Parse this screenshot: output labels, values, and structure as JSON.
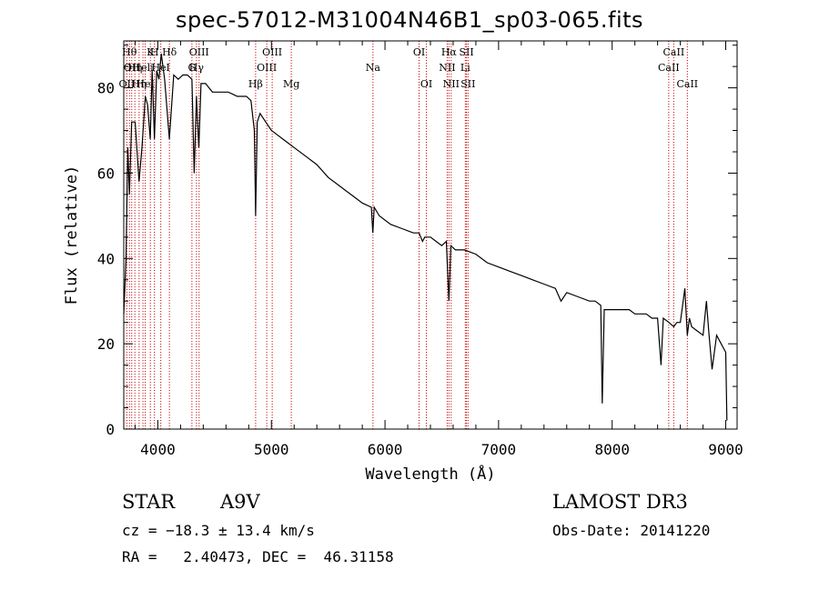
{
  "chart_data": {
    "type": "line",
    "title": "spec-57012-M31004N46B1_sp03-065.fits",
    "xlabel": "Wavelength (Å)",
    "ylabel": "Flux (relative)",
    "xlim": [
      3700,
      9100
    ],
    "ylim": [
      0,
      91
    ],
    "xticks": [
      4000,
      5000,
      6000,
      7000,
      8000,
      9000
    ],
    "yticks": [
      0,
      20,
      40,
      60,
      80
    ],
    "series": [
      {
        "name": "spectrum",
        "x": [
          3700,
          3720,
          3735,
          3750,
          3770,
          3800,
          3835,
          3860,
          3890,
          3910,
          3933,
          3950,
          3970,
          3990,
          4010,
          4030,
          4060,
          4101,
          4140,
          4180,
          4220,
          4260,
          4300,
          4320,
          4340,
          4361,
          4380,
          4420,
          4480,
          4550,
          4620,
          4700,
          4780,
          4820,
          4850,
          4861,
          4875,
          4900,
          4950,
          5000,
          5050,
          5100,
          5150,
          5200,
          5300,
          5400,
          5500,
          5600,
          5700,
          5800,
          5880,
          5893,
          5905,
          5950,
          6050,
          6150,
          6250,
          6300,
          6330,
          6350,
          6400,
          6450,
          6500,
          6540,
          6563,
          6580,
          6620,
          6700,
          6800,
          6900,
          7000,
          7100,
          7200,
          7300,
          7400,
          7500,
          7550,
          7600,
          7700,
          7800,
          7850,
          7900,
          7913,
          7930,
          7980,
          8050,
          8150,
          8200,
          8250,
          8300,
          8350,
          8400,
          8430,
          8450,
          8500,
          8542,
          8570,
          8600,
          8640,
          8662,
          8680,
          8700,
          8750,
          8800,
          8830,
          8850,
          8880,
          8920,
          8960,
          9000,
          9010
        ],
        "values": [
          27,
          40,
          66,
          55,
          72,
          72,
          58,
          66,
          78,
          76,
          68,
          84,
          68,
          84,
          82,
          88,
          82,
          68,
          83,
          82,
          83,
          83,
          82,
          60,
          78,
          66,
          81,
          81,
          79,
          79,
          79,
          78,
          78,
          77,
          70,
          50,
          72,
          74,
          72,
          70,
          69,
          68,
          67,
          66,
          64,
          62,
          59,
          57,
          55,
          53,
          52,
          46,
          52,
          50,
          48,
          47,
          46,
          46,
          44,
          45,
          45,
          44,
          43,
          44,
          30,
          43,
          42,
          42,
          41,
          39,
          38,
          37,
          36,
          35,
          34,
          33,
          30,
          32,
          31,
          30,
          30,
          29,
          6,
          28,
          28,
          28,
          28,
          27,
          27,
          27,
          26,
          26,
          15,
          26,
          25,
          24,
          25,
          25,
          33,
          22,
          26,
          24,
          23,
          22,
          30,
          23,
          14,
          22,
          20,
          18,
          2
        ]
      }
    ],
    "lines": [
      {
        "wl": 3727,
        "row": 2,
        "label": "OII"
      },
      {
        "wl": 3750,
        "row": 0,
        "label": "Hθ"
      },
      {
        "wl": 3770,
        "row": 1,
        "label": "OII"
      },
      {
        "wl": 3798,
        "row": 1,
        "label": "Hη"
      },
      {
        "wl": 3835,
        "row": 2,
        "label": "Hη"
      },
      {
        "wl": 3869,
        "row": 1,
        "label": "Heli"
      },
      {
        "wl": 3889,
        "row": 2,
        "label": "HeI"
      },
      {
        "wl": 3934,
        "row": 0,
        "label": "K"
      },
      {
        "wl": 3970,
        "row": 0,
        "label": "H"
      },
      {
        "wl": 4026,
        "row": 1,
        "label": "HeI"
      },
      {
        "wl": 4102,
        "row": 0,
        "label": "Hδ"
      },
      {
        "wl": 4300,
        "row": 1,
        "label": "G"
      },
      {
        "wl": 4340,
        "row": 1,
        "label": "Hγ"
      },
      {
        "wl": 4363,
        "row": 0,
        "label": "OIII"
      },
      {
        "wl": 4861,
        "row": 2,
        "label": "Hβ"
      },
      {
        "wl": 4959,
        "row": 1,
        "label": "OIII"
      },
      {
        "wl": 5007,
        "row": 0,
        "label": "OIII"
      },
      {
        "wl": 5175,
        "row": 2,
        "label": "Mg"
      },
      {
        "wl": 5894,
        "row": 1,
        "label": "Na"
      },
      {
        "wl": 6300,
        "row": 0,
        "label": "OI"
      },
      {
        "wl": 6364,
        "row": 2,
        "label": "OI"
      },
      {
        "wl": 6548,
        "row": 1,
        "label": "NII"
      },
      {
        "wl": 6563,
        "row": 0,
        "label": "Hα"
      },
      {
        "wl": 6583,
        "row": 2,
        "label": "NII"
      },
      {
        "wl": 6707,
        "row": 1,
        "label": "Li"
      },
      {
        "wl": 6717,
        "row": 0,
        "label": "SII"
      },
      {
        "wl": 6731,
        "row": 2,
        "label": "SII"
      },
      {
        "wl": 8498,
        "row": 1,
        "label": "CaII"
      },
      {
        "wl": 8542,
        "row": 0,
        "label": "CaII"
      },
      {
        "wl": 8662,
        "row": 2,
        "label": "CaII"
      }
    ],
    "colors": {
      "axis": "#000000",
      "line": "#000000",
      "marker": "#cc0000"
    }
  },
  "info": {
    "class": "STAR",
    "subclass": "A9V",
    "survey": "LAMOST DR3",
    "redshift": "cz = −18.3 ± 13.4 km/s",
    "obs_date": "Obs-Date: 20141220",
    "coords": "RA =   2.40473, DEC =  46.31158"
  }
}
